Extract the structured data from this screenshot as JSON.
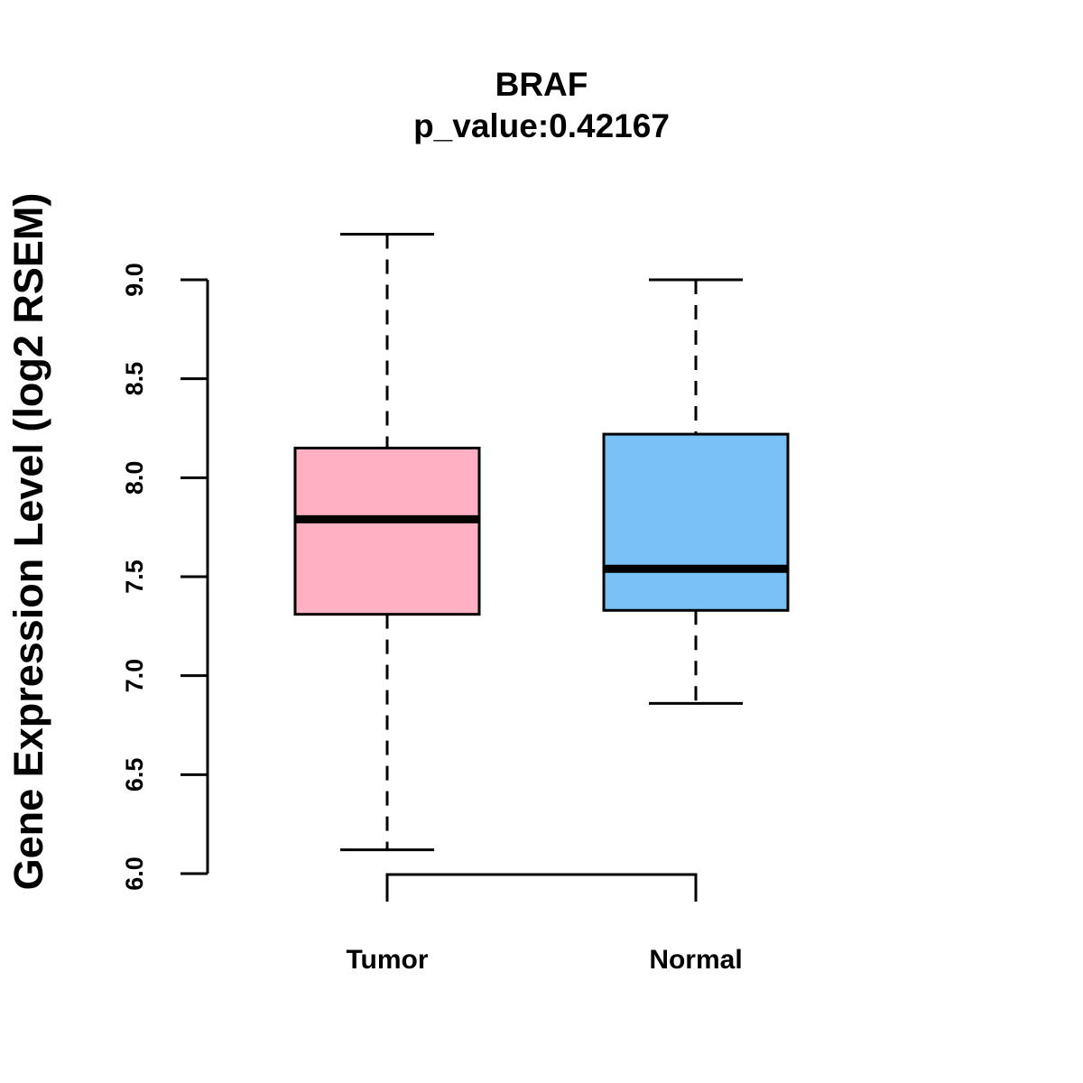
{
  "chart_data": {
    "type": "box",
    "title": "BRAF",
    "subtitle": "p_value:0.42167",
    "xlabel": "",
    "ylabel": "Gene Expression Level (log2 RSEM)",
    "ylim": [
      6.0,
      9.0
    ],
    "yticks": [
      "6.0",
      "6.5",
      "7.0",
      "7.5",
      "8.0",
      "8.5",
      "9.0"
    ],
    "ytick_values": [
      6.0,
      6.5,
      7.0,
      7.5,
      8.0,
      8.5,
      9.0
    ],
    "categories": [
      "Tumor",
      "Normal"
    ],
    "series": [
      {
        "category": "Tumor",
        "whisker_low": 6.12,
        "q1": 7.31,
        "median": 7.79,
        "q3": 8.15,
        "whisker_high": 9.23,
        "color": "#FFB0C2"
      },
      {
        "category": "Normal",
        "whisker_low": 6.86,
        "q1": 7.33,
        "median": 7.54,
        "q3": 8.22,
        "whisker_high": 9.0,
        "color": "#79C2F7"
      }
    ],
    "grid": false,
    "legend": "none"
  }
}
